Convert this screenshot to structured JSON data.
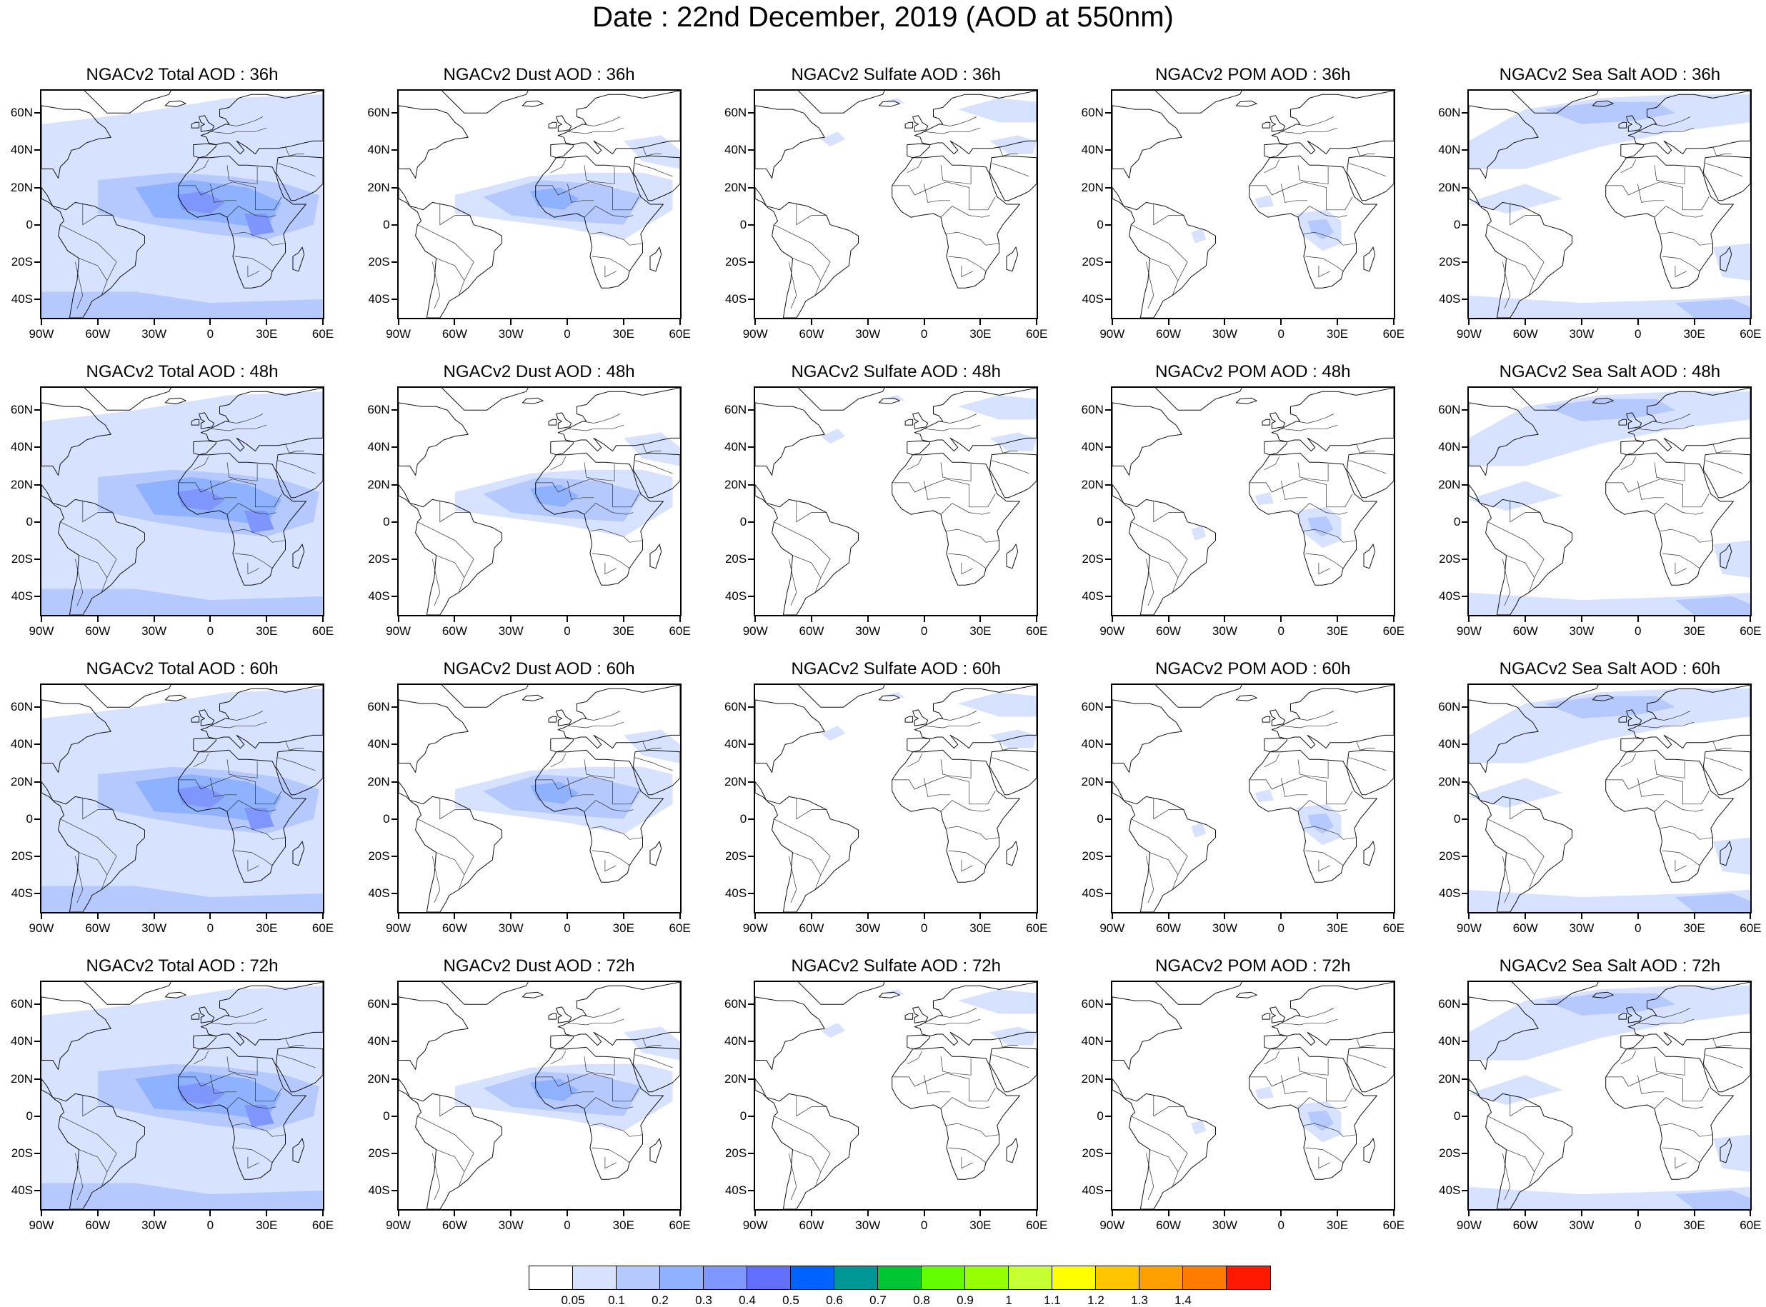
{
  "title": "Date : 22nd December, 2019 (AOD at 550nm)",
  "lat_labels": [
    "60N",
    "40N",
    "20N",
    "0",
    "20S",
    "40S"
  ],
  "lon_labels": [
    "90W",
    "60W",
    "30W",
    "0",
    "30E",
    "60E"
  ],
  "colorbar": {
    "colors": [
      "#ffffff",
      "#d6e2ff",
      "#b5c9ff",
      "#8eb2ff",
      "#7f96ff",
      "#6370ff",
      "#0063ff",
      "#009696",
      "#00c633",
      "#63ff00",
      "#96ff00",
      "#c6ff33",
      "#ffff00",
      "#ffc600",
      "#ffa000",
      "#ff7c00",
      "#ff1900"
    ],
    "labels": [
      "0.05",
      "0.1",
      "0.2",
      "0.3",
      "0.4",
      "0.5",
      "0.6",
      "0.7",
      "0.8",
      "0.9",
      "1",
      "1.1",
      "1.2",
      "1.3",
      "1.4"
    ]
  },
  "panels": [
    {
      "title": "NGACv2 Total AOD : 36h",
      "species": "total"
    },
    {
      "title": "NGACv2 Dust AOD : 36h",
      "species": "dust"
    },
    {
      "title": "NGACv2 Sulfate AOD : 36h",
      "species": "sulfate"
    },
    {
      "title": "NGACv2 POM AOD : 36h",
      "species": "pom"
    },
    {
      "title": "NGACv2 Sea Salt AOD : 36h",
      "species": "seasalt"
    },
    {
      "title": "NGACv2 Total AOD : 48h",
      "species": "total"
    },
    {
      "title": "NGACv2 Dust AOD : 48h",
      "species": "dust"
    },
    {
      "title": "NGACv2 Sulfate AOD : 48h",
      "species": "sulfate"
    },
    {
      "title": "NGACv2 POM AOD : 48h",
      "species": "pom"
    },
    {
      "title": "NGACv2 Sea Salt AOD : 48h",
      "species": "seasalt"
    },
    {
      "title": "NGACv2 Total AOD : 60h",
      "species": "total"
    },
    {
      "title": "NGACv2 Dust AOD : 60h",
      "species": "dust"
    },
    {
      "title": "NGACv2 Sulfate AOD : 60h",
      "species": "sulfate"
    },
    {
      "title": "NGACv2 POM AOD : 60h",
      "species": "pom"
    },
    {
      "title": "NGACv2 Sea Salt AOD : 60h",
      "species": "seasalt"
    },
    {
      "title": "NGACv2 Total AOD : 72h",
      "species": "total"
    },
    {
      "title": "NGACv2 Dust AOD : 72h",
      "species": "dust"
    },
    {
      "title": "NGACv2 Sulfate AOD : 72h",
      "species": "sulfate"
    },
    {
      "title": "NGACv2 POM AOD : 72h",
      "species": "pom"
    },
    {
      "title": "NGACv2 Sea Salt  AOD : 72h",
      "species": "seasalt"
    }
  ]
}
